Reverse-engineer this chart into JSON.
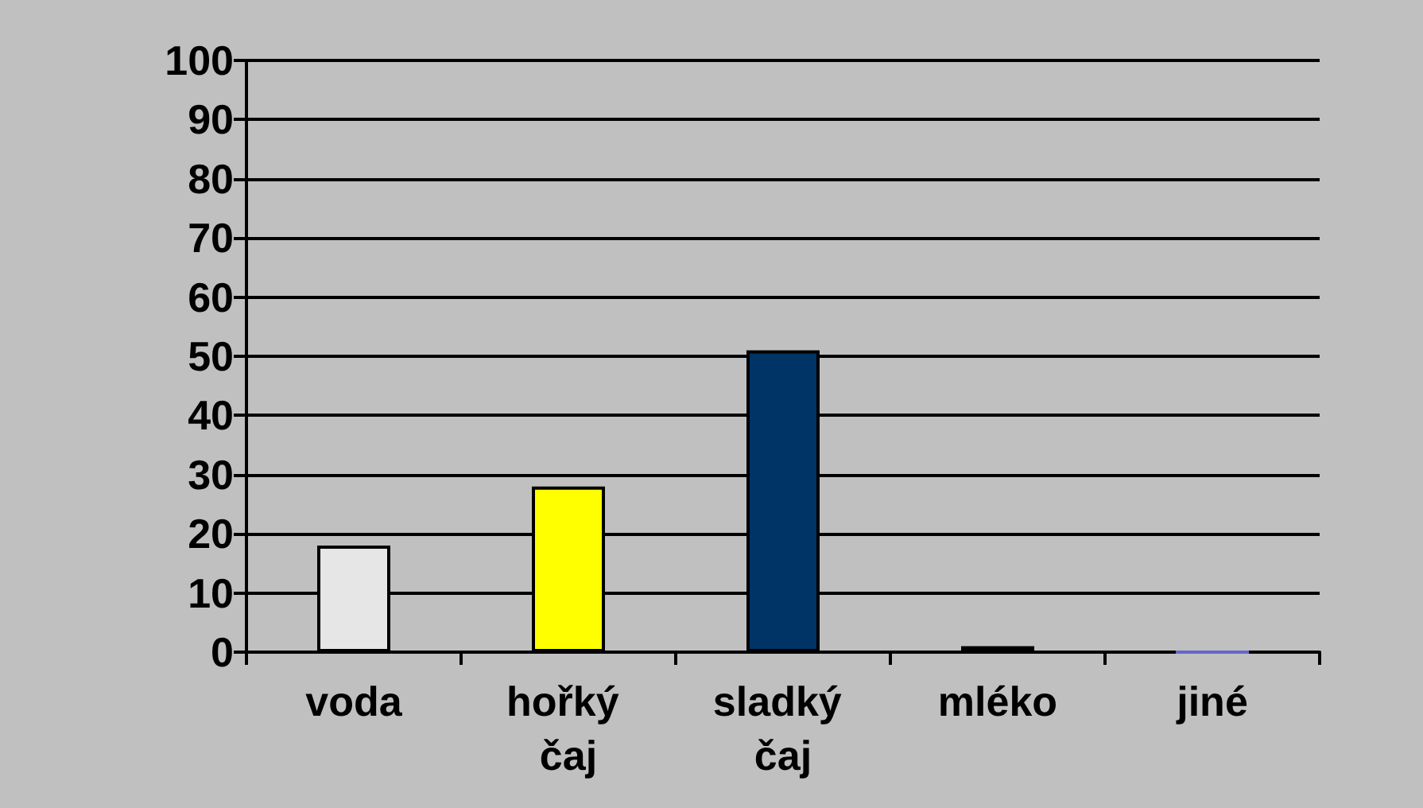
{
  "chart_data": {
    "type": "bar",
    "categories": [
      "voda",
      "hořký čaj",
      "sladký čaj",
      "mléko",
      "jiné"
    ],
    "values": [
      18,
      28,
      51,
      1,
      0
    ],
    "colors": [
      "#e6e6e6",
      "#ffff00",
      "#003366",
      "#9999cc",
      "#6666cc"
    ],
    "ylim": [
      0,
      100
    ],
    "yticks": [
      0,
      10,
      20,
      30,
      40,
      50,
      60,
      70,
      80,
      90,
      100
    ],
    "grid": "y"
  }
}
